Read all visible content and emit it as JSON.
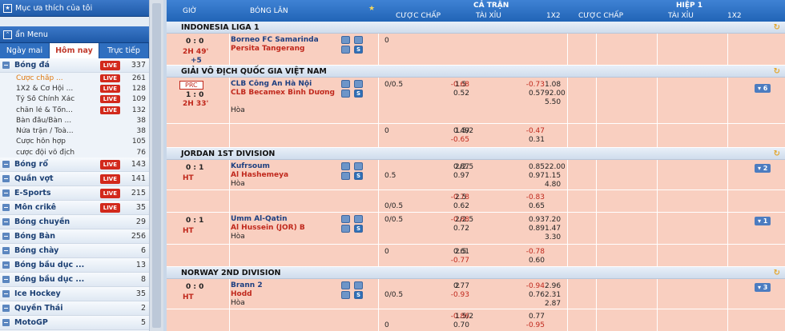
{
  "sidebar": {
    "favorites": "Mục ưa thích của tôi",
    "menu": "ẩn Menu",
    "tabs": [
      "Ngày mai",
      "Hôm nay",
      "Trực tiếp"
    ],
    "live_label": "LIVE",
    "sports": [
      {
        "name": "Bóng đá",
        "count": "337",
        "live": true
      },
      {
        "name": "Bóng rổ",
        "count": "143",
        "live": true
      },
      {
        "name": "Quần vợt",
        "count": "141",
        "live": true
      },
      {
        "name": "E-Sports",
        "count": "215",
        "live": true
      },
      {
        "name": "Môn crikê",
        "count": "35",
        "live": true
      },
      {
        "name": "Bóng chuyền",
        "count": "29",
        "live": false
      },
      {
        "name": "Bóng Bàn",
        "count": "256",
        "live": false
      },
      {
        "name": "Bóng chày",
        "count": "6",
        "live": false
      },
      {
        "name": "Bóng bầu dục ...",
        "count": "13",
        "live": false
      },
      {
        "name": "Bóng bầu dục ...",
        "count": "8",
        "live": false
      },
      {
        "name": "Ice Hockey",
        "count": "35",
        "live": false
      },
      {
        "name": "Quyền Thái",
        "count": "2",
        "live": false
      },
      {
        "name": "MotoGP",
        "count": "5",
        "live": false
      }
    ],
    "football_sub": [
      {
        "name": "Cược chấp ...",
        "count": "261",
        "live": true
      },
      {
        "name": "1X2 & Cơ Hội ...",
        "count": "128",
        "live": true
      },
      {
        "name": "Tỷ Số Chính Xác",
        "count": "109",
        "live": true
      },
      {
        "name": "chẵn lẻ & Tổn...",
        "count": "132",
        "live": true
      },
      {
        "name": "Bàn đầu/Bàn ...",
        "count": "38",
        "live": false
      },
      {
        "name": "Nửa trận / Toà...",
        "count": "38",
        "live": false
      },
      {
        "name": "Cược hỗn hợp",
        "count": "105",
        "live": false
      },
      {
        "name": "cược đội vô địch",
        "count": "76",
        "live": false
      }
    ]
  },
  "header": {
    "time": "GIỜ",
    "match": "BÓNG LĂN",
    "ft": "CẢ TRẬN",
    "ht": "HIỆP 1",
    "handicap": "CƯỢC CHẤP",
    "ou": "TÀI XỈU",
    "x12": "1X2"
  },
  "leagues": [
    {
      "name": "INDONESIA LIGA 1",
      "rows": [
        {
          "h": 40,
          "score": "0 : 0",
          "time": "2H 49'",
          "extra": "+5",
          "t1": "Borneo FC Samarinda",
          "t2": "Persita Tangerang",
          "draw": "",
          "more": "",
          "prc": "",
          "cells": [
            [
              "0",
              "",
              "",
              "",
              "",
              "",
              ""
            ]
          ]
        }
      ]
    },
    {
      "name": "GIẢI VÔ ĐỊCH QUỐC GIA VIỆT NAM",
      "rows": [
        {
          "h": 58,
          "score": "1 : 0",
          "time": "2H 33'",
          "extra": "",
          "t1": "CLB Công An Hà Nội",
          "t2": "CLB Becamex Bình Dương",
          "draw": "Hòa",
          "more": "6",
          "prc": "PRC",
          "cells": [
            [
              "0/0.5",
              "-0.68",
              "1.5",
              "-0.73",
              "1.08"
            ],
            [
              "",
              "0.52",
              "",
              "0.57",
              "92.00"
            ],
            [
              "",
              "",
              "",
              "",
              "5.50"
            ]
          ]
        },
        {
          "h": 30,
          "score": "",
          "time": "",
          "extra": "",
          "t1": "",
          "t2": "",
          "draw": "",
          "more": "",
          "prc": "",
          "cells": [
            [
              "0",
              "0.49",
              "1.5/2",
              "-0.47",
              ""
            ],
            [
              "",
              "-0.65",
              "",
              "0.31",
              ""
            ]
          ]
        }
      ]
    },
    {
      "name": "JORDAN 1ST DIVISION",
      "rows": [
        {
          "h": 38,
          "score": "0 : 1",
          "time": "HT",
          "extra": "",
          "t1": "Kufrsoum",
          "t2": "Al Hashemeya",
          "draw": "Hòa",
          "more": "2",
          "prc": "",
          "cells": [
            [
              "",
              "0.87",
              "2/2.5",
              "0.85",
              "22.00"
            ],
            [
              "0.5",
              "0.97",
              "",
              "0.97",
              "1.15"
            ],
            [
              "",
              "",
              "",
              "",
              "4.80"
            ]
          ]
        },
        {
          "h": 28,
          "score": "",
          "time": "",
          "extra": "",
          "t1": "",
          "t2": "",
          "draw": "",
          "more": "",
          "prc": "",
          "cells": [
            [
              "",
              "-0.78",
              "2.5",
              "-0.83",
              ""
            ],
            [
              "0/0.5",
              "0.62",
              "",
              "0.65",
              ""
            ]
          ]
        },
        {
          "h": 40,
          "score": "0 : 1",
          "time": "HT",
          "extra": "",
          "t1": "Umm Al-Qatin",
          "t2": "Al Hussein (JOR) B",
          "draw": "Hòa",
          "more": "1",
          "prc": "",
          "cells": [
            [
              "0/0.5",
              "-0.88",
              "2/2.5",
              "0.93",
              "7.20"
            ],
            [
              "",
              "0.72",
              "",
              "0.89",
              "1.47"
            ],
            [
              "",
              "",
              "",
              "",
              "3.30"
            ]
          ]
        },
        {
          "h": 28,
          "score": "",
          "time": "",
          "extra": "",
          "t1": "",
          "t2": "",
          "draw": "",
          "more": "",
          "prc": "",
          "cells": [
            [
              "0",
              "0.61",
              "2.5",
              "-0.78",
              ""
            ],
            [
              "",
              "-0.77",
              "",
              "0.60",
              ""
            ]
          ]
        }
      ]
    },
    {
      "name": "NORWAY 2ND DIVISION",
      "rows": [
        {
          "h": 38,
          "score": "0 : 0",
          "time": "HT",
          "extra": "",
          "t1": "Brann 2",
          "t2": "Hodd",
          "draw": "Hòa",
          "more": "3",
          "prc": "",
          "cells": [
            [
              "",
              "0.77",
              "2",
              "-0.94",
              "2.96"
            ],
            [
              "0/0.5",
              "-0.93",
              "",
              "0.76",
              "2.31"
            ],
            [
              "",
              "",
              "",
              "",
              "2.87"
            ]
          ]
        },
        {
          "h": 28,
          "score": "",
          "time": "",
          "extra": "",
          "t1": "",
          "t2": "",
          "draw": "",
          "more": "",
          "prc": "",
          "cells": [
            [
              "",
              "-0.86",
              "1.5/2",
              "0.77",
              ""
            ],
            [
              "0",
              "0.70",
              "",
              "-0.95",
              ""
            ]
          ]
        }
      ]
    }
  ]
}
